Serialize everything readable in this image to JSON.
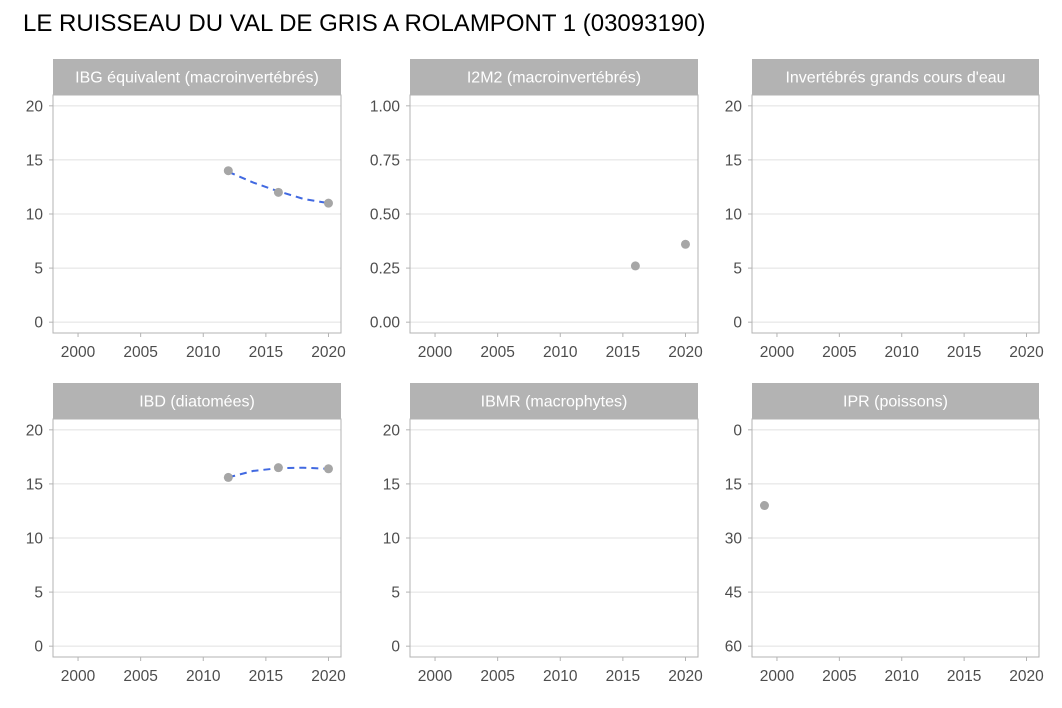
{
  "title": "LE RUISSEAU DU VAL DE GRIS A ROLAMPONT 1 (03093190)",
  "colors": {
    "strip_bg": "#b3b3b3",
    "strip_text": "#ffffff",
    "panel_border": "#b3b3b3",
    "grid": "#e0e0e0",
    "point": "#a6a6a6",
    "trend": "#4169e1",
    "tick_text": "#4d4d4d"
  },
  "chart_data": [
    {
      "type": "scatter",
      "title": "IBG équivalent (macroinvertébrés)",
      "xlim": [
        1998,
        2021
      ],
      "x_ticks": [
        2000,
        2005,
        2010,
        2015,
        2020
      ],
      "x_tick_labels": [
        "2000",
        "2005",
        "2010",
        "2015",
        "2020"
      ],
      "ylim": [
        -1,
        21
      ],
      "y_reversed": false,
      "y_ticks": [
        0,
        5,
        10,
        15,
        20
      ],
      "y_tick_labels": [
        "0",
        "5",
        "10",
        "15",
        "20"
      ],
      "points": [
        {
          "x": 2012,
          "y": 14
        },
        {
          "x": 2016,
          "y": 12
        },
        {
          "x": 2020,
          "y": 11
        }
      ],
      "trend": {
        "style": "dashed",
        "points": [
          {
            "x": 2012,
            "y": 13.9
          },
          {
            "x": 2014,
            "y": 12.9
          },
          {
            "x": 2016,
            "y": 12.1
          },
          {
            "x": 2018,
            "y": 11.4
          },
          {
            "x": 2020,
            "y": 11.0
          }
        ]
      }
    },
    {
      "type": "scatter",
      "title": "I2M2 (macroinvertébrés)",
      "xlim": [
        1998,
        2021
      ],
      "x_ticks": [
        2000,
        2005,
        2010,
        2015,
        2020
      ],
      "x_tick_labels": [
        "2000",
        "2005",
        "2010",
        "2015",
        "2020"
      ],
      "ylim": [
        -0.05,
        1.05
      ],
      "y_reversed": false,
      "y_ticks": [
        0,
        0.25,
        0.5,
        0.75,
        1.0
      ],
      "y_tick_labels": [
        "0.00",
        "0.25",
        "0.50",
        "0.75",
        "1.00"
      ],
      "points": [
        {
          "x": 2016,
          "y": 0.26
        },
        {
          "x": 2020,
          "y": 0.36
        }
      ],
      "trend": null
    },
    {
      "type": "scatter",
      "title": "Invertébrés grands cours d'eau",
      "xlim": [
        1998,
        2021
      ],
      "x_ticks": [
        2000,
        2005,
        2010,
        2015,
        2020
      ],
      "x_tick_labels": [
        "2000",
        "2005",
        "2010",
        "2015",
        "2020"
      ],
      "ylim": [
        -1,
        21
      ],
      "y_reversed": false,
      "y_ticks": [
        0,
        5,
        10,
        15,
        20
      ],
      "y_tick_labels": [
        "0",
        "5",
        "10",
        "15",
        "20"
      ],
      "points": [],
      "trend": null
    },
    {
      "type": "scatter",
      "title": "IBD (diatomées)",
      "xlim": [
        1998,
        2021
      ],
      "x_ticks": [
        2000,
        2005,
        2010,
        2015,
        2020
      ],
      "x_tick_labels": [
        "2000",
        "2005",
        "2010",
        "2015",
        "2020"
      ],
      "ylim": [
        -1,
        21
      ],
      "y_reversed": false,
      "y_ticks": [
        0,
        5,
        10,
        15,
        20
      ],
      "y_tick_labels": [
        "0",
        "5",
        "10",
        "15",
        "20"
      ],
      "points": [
        {
          "x": 2012,
          "y": 15.6
        },
        {
          "x": 2016,
          "y": 16.5
        },
        {
          "x": 2020,
          "y": 16.4
        }
      ],
      "trend": {
        "style": "dashed",
        "points": [
          {
            "x": 2012,
            "y": 15.6
          },
          {
            "x": 2014,
            "y": 16.2
          },
          {
            "x": 2016,
            "y": 16.45
          },
          {
            "x": 2018,
            "y": 16.5
          },
          {
            "x": 2020,
            "y": 16.4
          }
        ]
      }
    },
    {
      "type": "scatter",
      "title": "IBMR (macrophytes)",
      "xlim": [
        1998,
        2021
      ],
      "x_ticks": [
        2000,
        2005,
        2010,
        2015,
        2020
      ],
      "x_tick_labels": [
        "2000",
        "2005",
        "2010",
        "2015",
        "2020"
      ],
      "ylim": [
        -1,
        21
      ],
      "y_reversed": false,
      "y_ticks": [
        0,
        5,
        10,
        15,
        20
      ],
      "y_tick_labels": [
        "0",
        "5",
        "10",
        "15",
        "20"
      ],
      "points": [],
      "trend": null
    },
    {
      "type": "scatter",
      "title": "IPR (poissons)",
      "xlim": [
        1998,
        2021
      ],
      "x_ticks": [
        2000,
        2005,
        2010,
        2015,
        2020
      ],
      "x_tick_labels": [
        "2000",
        "2005",
        "2010",
        "2015",
        "2020"
      ],
      "ylim": [
        -3,
        63
      ],
      "y_reversed": true,
      "y_ticks": [
        0,
        15,
        30,
        45,
        60
      ],
      "y_tick_labels": [
        "0",
        "15",
        "30",
        "45",
        "60"
      ],
      "points": [
        {
          "x": 1999,
          "y": 21
        }
      ],
      "trend": null
    }
  ]
}
